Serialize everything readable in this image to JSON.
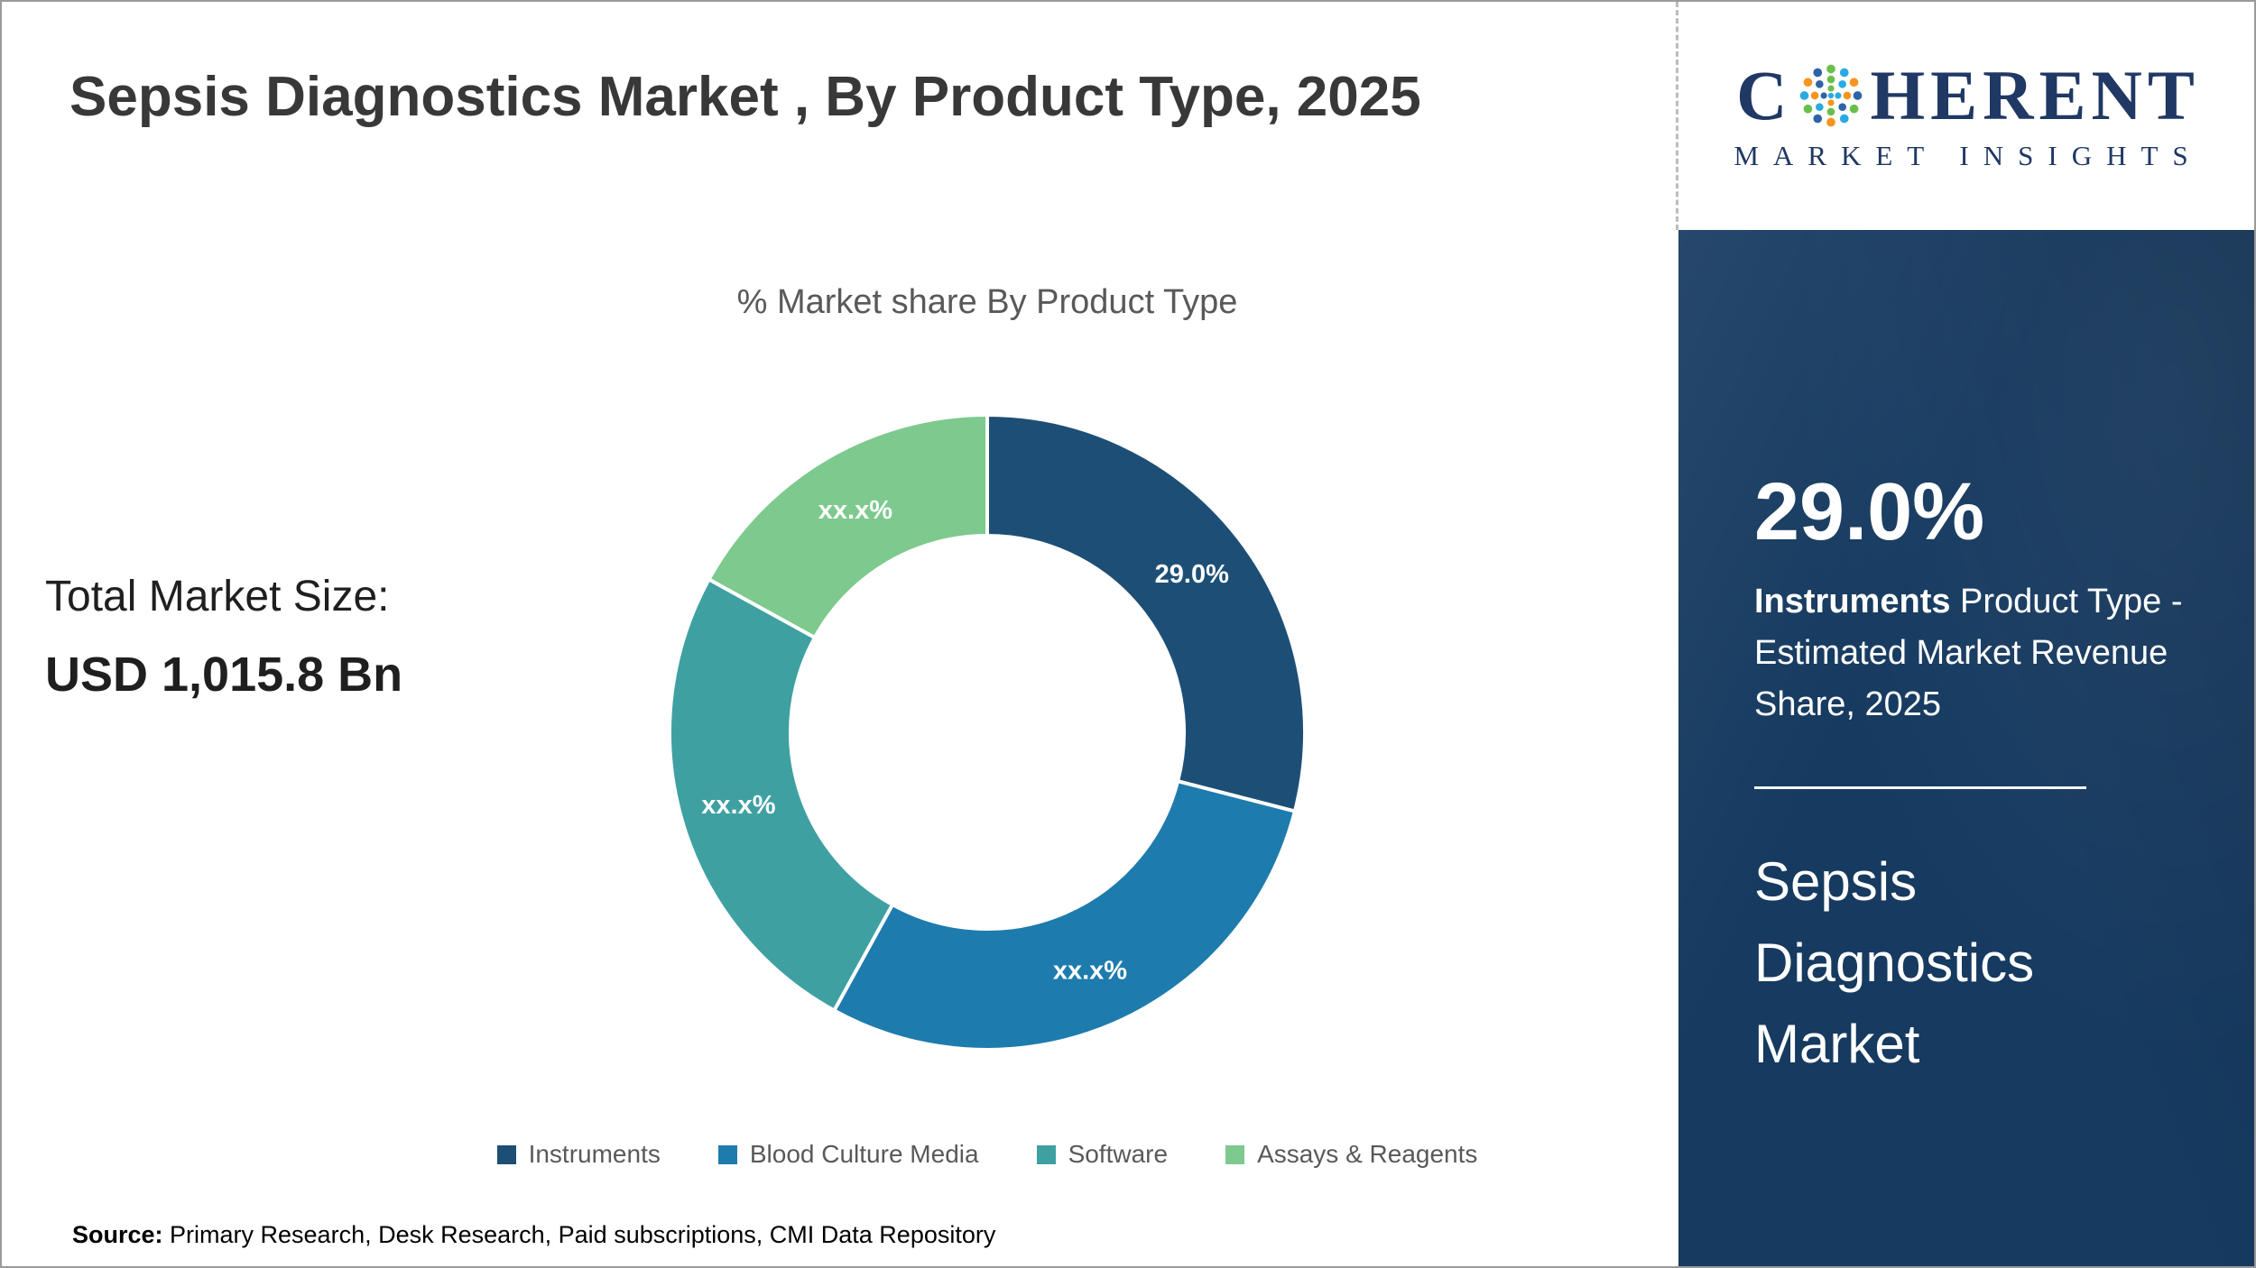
{
  "colors": {
    "accent_navy": "#1d4f76",
    "sidebar_bg": "#163a60",
    "logo_navy": "#203864"
  },
  "header": {
    "title": "Sepsis Diagnostics Market , By Product Type, 2025"
  },
  "logo": {
    "part1": "C",
    "part2": "HERENT",
    "subtitle": "MARKET INSIGHTS",
    "dot_colors": [
      "#6abf4b",
      "#29abe2",
      "#f7941d",
      "#2e64a5"
    ]
  },
  "total_market": {
    "label": "Total Market Size:",
    "value": "USD 1,015.8 Bn"
  },
  "sidebar": {
    "stat_value": "29.0%",
    "stat_bold": "Instruments",
    "stat_rest": " Product Type - Estimated Market Revenue Share, 2025",
    "market_name": "Sepsis Diagnostics Market"
  },
  "source": {
    "label": "Source:",
    "text": " Primary Research, Desk Research, Paid subscriptions, CMI Data Repository"
  },
  "chart_data": {
    "type": "pie",
    "subtype": "donut",
    "title": "% Market share By Product Type",
    "legend_position": "bottom",
    "start_angle_deg": 0,
    "series": [
      {
        "name": "Instruments",
        "value": 29.0,
        "display_label": "29.0%",
        "color": "#1d4f76"
      },
      {
        "name": "Blood Culture Media",
        "value": 29.0,
        "display_label": "xx.x%",
        "color": "#1e7bad"
      },
      {
        "name": "Software",
        "value": 25.0,
        "display_label": "xx.x%",
        "color": "#3fa0a2"
      },
      {
        "name": "Assays & Reagents",
        "value": 17.0,
        "display_label": "xx.x%",
        "color": "#7ec98e"
      }
    ]
  }
}
